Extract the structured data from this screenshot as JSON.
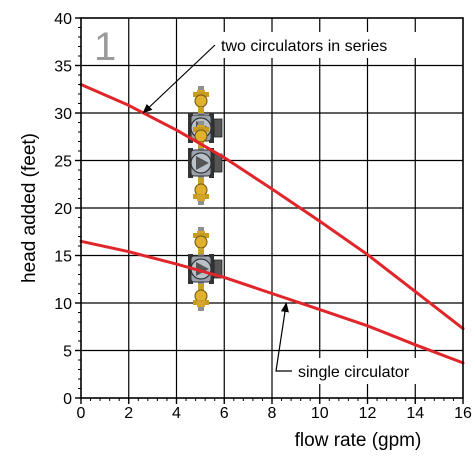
{
  "chart_data": {
    "type": "line",
    "panel_label": "1",
    "xlabel": "flow rate (gpm)",
    "ylabel": "head added (feet)",
    "xlim": [
      0,
      16
    ],
    "ylim": [
      0,
      40
    ],
    "x_ticks": [
      0,
      2,
      4,
      6,
      8,
      10,
      12,
      14,
      16
    ],
    "y_ticks": [
      0,
      5,
      10,
      15,
      20,
      25,
      30,
      35,
      40
    ],
    "grid": true,
    "series_color": "#e0262a",
    "series": [
      {
        "name": "two circulators in series",
        "x": [
          0,
          2,
          4,
          6,
          8,
          10,
          12,
          14,
          16
        ],
        "y": [
          33.0,
          30.8,
          28.2,
          25.3,
          22.0,
          18.6,
          15.1,
          11.2,
          7.3
        ]
      },
      {
        "name": "single circulator",
        "x": [
          0,
          2,
          4,
          6,
          8,
          10,
          12,
          14,
          16
        ],
        "y": [
          16.5,
          15.4,
          14.1,
          12.7,
          11.0,
          9.3,
          7.6,
          5.6,
          3.7
        ]
      }
    ],
    "annotations": [
      {
        "text": "two circulators in series",
        "points_to": [
          2.6,
          30.0
        ]
      },
      {
        "text": "single circulator",
        "points_to": [
          8.6,
          10.0
        ]
      }
    ]
  }
}
